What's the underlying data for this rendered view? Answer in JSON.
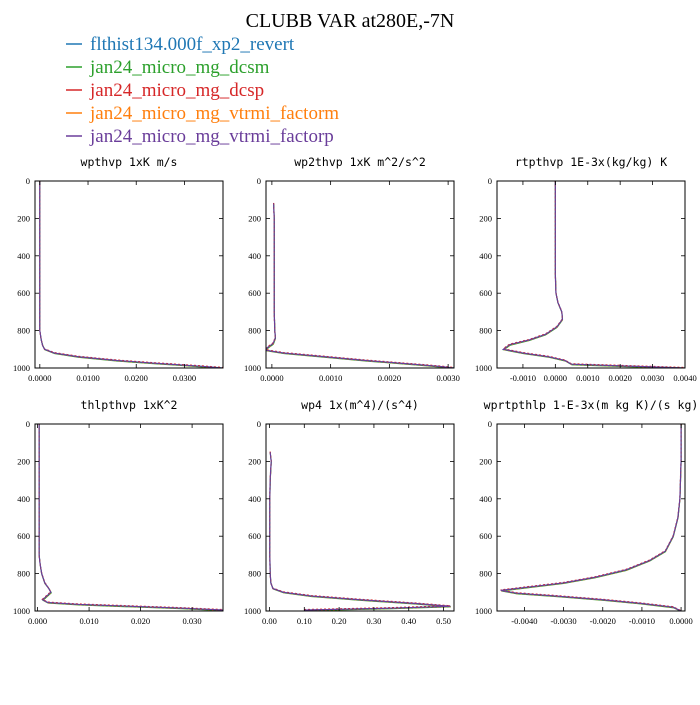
{
  "figure": {
    "title": "CLUBB VAR at280E,-7N"
  },
  "legend": [
    {
      "name": "flthist134.000f_xp2_revert",
      "color": "#1f77b4"
    },
    {
      "name": "jan24_micro_mg_dcsm",
      "color": "#2ca02c"
    },
    {
      "name": "jan24_micro_mg_dcsp",
      "color": "#d62728"
    },
    {
      "name": "jan24_micro_mg_vtrmi_factorm",
      "color": "#ff7f0e"
    },
    {
      "name": "jan24_micro_mg_vtrmi_factorp",
      "color": "#6a3d9a"
    }
  ],
  "chart_data": [
    {
      "type": "line",
      "title": "wpthvp  1xK m/s",
      "xlim": [
        -0.001,
        0.038
      ],
      "ylim": [
        1000,
        0
      ],
      "xticks": [
        0.0,
        0.01,
        0.02,
        0.03
      ],
      "xticklabels": [
        "0.0000",
        "0.0100",
        "0.0200",
        "0.0300"
      ],
      "yticks": [
        0,
        200,
        400,
        600,
        800,
        1000
      ],
      "series_y": [
        0,
        100,
        200,
        300,
        400,
        500,
        600,
        700,
        800,
        850,
        880,
        900,
        920,
        940,
        960,
        975,
        985,
        992,
        1000
      ],
      "series_x": [
        0,
        0,
        0,
        0,
        0,
        0,
        0,
        0,
        0,
        0.0003,
        0.0006,
        0.001,
        0.003,
        0.008,
        0.016,
        0.024,
        0.03,
        0.034,
        0.038
      ]
    },
    {
      "type": "line",
      "title": "wp2thvp  1xK m^2/s^2",
      "xlim": [
        -0.0001,
        0.0031
      ],
      "ylim": [
        1000,
        0
      ],
      "xticks": [
        0.0,
        0.001,
        0.002,
        0.003
      ],
      "xticklabels": [
        "0.0000",
        "0.0010",
        "0.0020",
        "0.0030"
      ],
      "yticks": [
        0,
        200,
        400,
        600,
        800,
        1000
      ],
      "series_y": [
        120,
        200,
        300,
        400,
        500,
        600,
        700,
        800,
        840,
        870,
        890,
        905,
        920,
        940,
        960,
        975,
        985,
        993,
        1000
      ],
      "series_x": [
        3e-05,
        4e-05,
        4e-05,
        4e-05,
        4e-05,
        4e-05,
        4e-05,
        5e-05,
        6e-05,
        2e-05,
        -7e-05,
        -0.0001,
        0.0002,
        0.0009,
        0.0016,
        0.0022,
        0.0026,
        0.0029,
        0.0031
      ]
    },
    {
      "type": "line",
      "title": "rtpthvp  1E-3x(kg/kg) K",
      "xlim": [
        -0.0018,
        0.004
      ],
      "ylim": [
        1000,
        0
      ],
      "xticks": [
        -0.001,
        0.0,
        0.001,
        0.002,
        0.003,
        0.004
      ],
      "xticklabels": [
        "-0.0010",
        "0.0000",
        "0.0010",
        "0.0020",
        "0.0030",
        "0.0040"
      ],
      "yticks": [
        0,
        200,
        400,
        600,
        800,
        1000
      ],
      "series_y": [
        0,
        100,
        200,
        300,
        400,
        500,
        600,
        650,
        700,
        740,
        780,
        820,
        850,
        875,
        900,
        920,
        940,
        960,
        980,
        1000
      ],
      "series_x": [
        0,
        0,
        0,
        0,
        0,
        0,
        2e-05,
        8e-05,
        0.0002,
        0.00022,
        5e-05,
        -0.0003,
        -0.0008,
        -0.0014,
        -0.0016,
        -0.001,
        -0.0002,
        0.0003,
        0.0005,
        0.004
      ]
    },
    {
      "type": "line",
      "title": "thlpthvp  1xK^2",
      "xlim": [
        -0.0005,
        0.036
      ],
      "ylim": [
        1000,
        0
      ],
      "xticks": [
        0.0,
        0.01,
        0.02,
        0.03
      ],
      "xticklabels": [
        "0.000",
        "0.010",
        "0.020",
        "0.030"
      ],
      "yticks": [
        0,
        200,
        400,
        600,
        800,
        1000
      ],
      "series_y": [
        0,
        200,
        400,
        600,
        700,
        750,
        800,
        850,
        880,
        900,
        920,
        940,
        955,
        965,
        975,
        985,
        995
      ],
      "series_x": [
        0.0003,
        0.0003,
        0.0003,
        0.0003,
        0.0003,
        0.0005,
        0.0008,
        0.0014,
        0.0022,
        0.0026,
        0.0018,
        0.001,
        0.002,
        0.008,
        0.018,
        0.028,
        0.036
      ]
    },
    {
      "type": "line",
      "title": "wp4  1x(m^4)/(s^4)",
      "xlim": [
        -0.01,
        0.53
      ],
      "ylim": [
        1000,
        0
      ],
      "xticks": [
        0.0,
        0.1,
        0.2,
        0.3,
        0.4,
        0.5
      ],
      "xticklabels": [
        "0.00",
        "0.10",
        "0.20",
        "0.30",
        "0.40",
        "0.50"
      ],
      "yticks": [
        0,
        200,
        400,
        600,
        800,
        1000
      ],
      "series_y": [
        150,
        200,
        300,
        400,
        500,
        600,
        700,
        800,
        850,
        880,
        900,
        920,
        940,
        960,
        975,
        985,
        995
      ],
      "series_x": [
        0.002,
        0.005,
        0.002,
        0.001,
        0.001,
        0.001,
        0.001,
        0.002,
        0.004,
        0.01,
        0.04,
        0.12,
        0.26,
        0.42,
        0.52,
        0.35,
        0.1
      ]
    },
    {
      "type": "line",
      "title": "wprtpthlp  1-E-3x(m kg K)/(s kg)",
      "xlim": [
        -0.0047,
        0.0001
      ],
      "ylim": [
        1000,
        0
      ],
      "xticks": [
        -0.004,
        -0.003,
        -0.002,
        -0.001,
        0.0
      ],
      "xticklabels": [
        "-0.0040",
        "-0.0030",
        "-0.0020",
        "-0.0010",
        "0.0000"
      ],
      "yticks": [
        0,
        200,
        400,
        600,
        800,
        1000
      ],
      "series_y": [
        0,
        200,
        400,
        500,
        600,
        680,
        730,
        780,
        820,
        850,
        870,
        890,
        905,
        920,
        940,
        960,
        980,
        1000
      ],
      "series_x": [
        0,
        0,
        -3e-05,
        -8e-05,
        -0.0002,
        -0.0004,
        -0.0008,
        -0.0014,
        -0.0022,
        -0.003,
        -0.0038,
        -0.0046,
        -0.0042,
        -0.0032,
        -0.002,
        -0.001,
        -0.0002,
        0
      ]
    }
  ]
}
